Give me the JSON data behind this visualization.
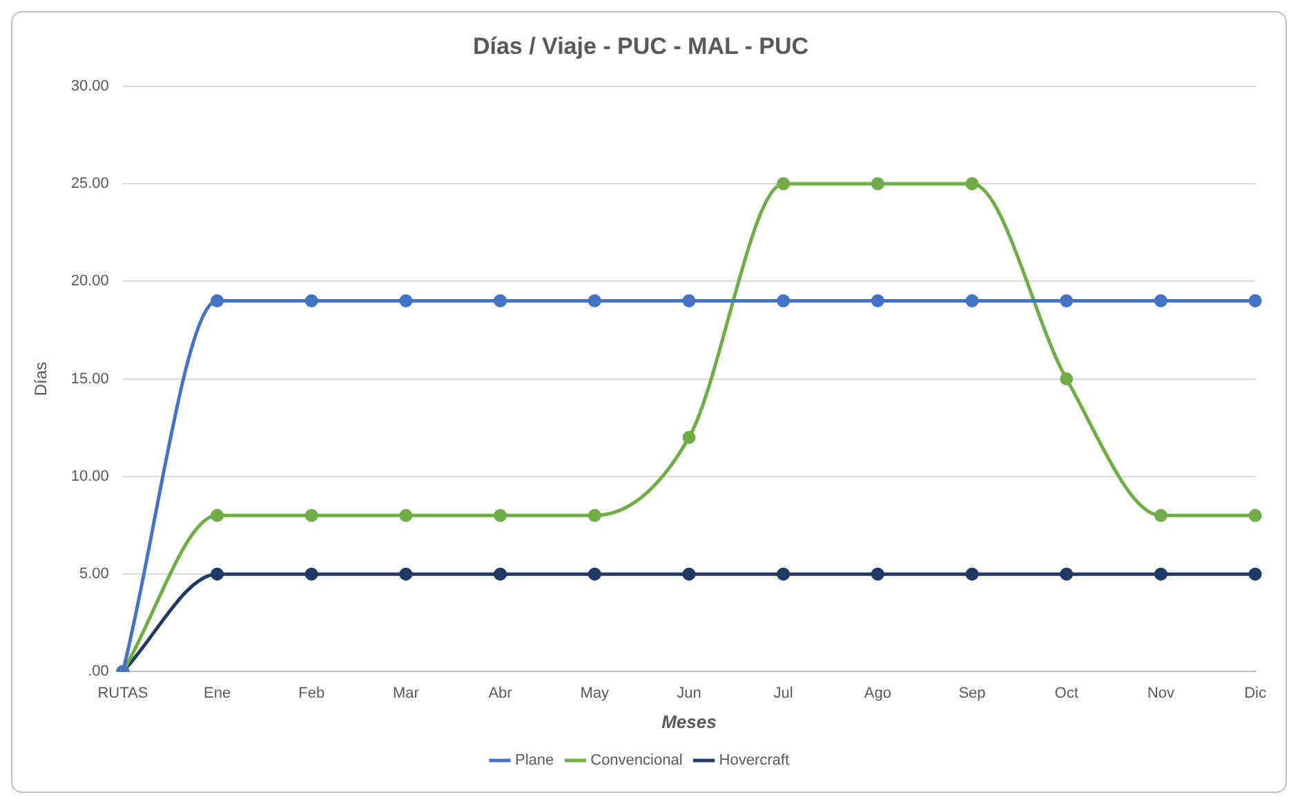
{
  "chart_data": {
    "type": "line",
    "title": "Días / Viaje - PUC - MAL - PUC",
    "xlabel": "Meses",
    "ylabel": "Días",
    "categories": [
      "RUTAS",
      "Ene",
      "Feb",
      "Mar",
      "Abr",
      "May",
      "Jun",
      "Jul",
      "Ago",
      "Sep",
      "Oct",
      "Nov",
      "Dic"
    ],
    "series": [
      {
        "name": "Plane",
        "color": "#4472c4",
        "values": [
          0,
          19,
          19,
          19,
          19,
          19,
          19,
          19,
          19,
          19,
          19,
          19,
          19
        ]
      },
      {
        "name": "Convencional",
        "color": "#70ad47",
        "values": [
          0,
          8,
          8,
          8,
          8,
          8,
          12,
          25,
          25,
          25,
          15,
          8,
          8
        ]
      },
      {
        "name": "Hovercraft",
        "color": "#1f3864",
        "values": [
          0,
          5,
          5,
          5,
          5,
          5,
          5,
          5,
          5,
          5,
          5,
          5,
          5
        ]
      }
    ],
    "ylim": [
      0,
      30
    ],
    "yticks": [
      {
        "value": 0,
        "label": ".00"
      },
      {
        "value": 5,
        "label": "5.00"
      },
      {
        "value": 10,
        "label": "10.00"
      },
      {
        "value": 15,
        "label": "15.00"
      },
      {
        "value": 20,
        "label": "20.00"
      },
      {
        "value": 25,
        "label": "25.00"
      },
      {
        "value": 30,
        "label": "30.00"
      }
    ],
    "grid": "y",
    "legend": "bottom",
    "marker": "circle",
    "line_style": "solid"
  }
}
